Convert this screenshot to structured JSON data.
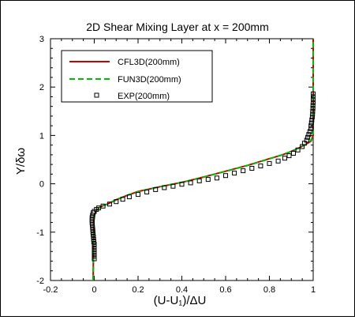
{
  "chart_data": {
    "type": "line",
    "title": "2D Shear Mixing Layer at x = 200mm",
    "xlabel": "(U-U₁)/ΔU",
    "ylabel": "Y/δω",
    "xlim": [
      -0.2,
      1.0
    ],
    "ylim": [
      -2,
      3
    ],
    "xticks": [
      "-0.2",
      "0",
      "0.2",
      "0.4",
      "0.6",
      "0.8",
      "1"
    ],
    "xtick_values": [
      -0.2,
      0,
      0.2,
      0.4,
      0.6,
      0.8,
      1.0
    ],
    "yticks": [
      "-2",
      "-1",
      "0",
      "1",
      "2",
      "3"
    ],
    "ytick_values": [
      -2,
      -1,
      0,
      1,
      2,
      3
    ],
    "legend_placement": "top-left",
    "series": [
      {
        "name": "CFL3D(200mm)",
        "style": "solid line",
        "color": "#cc0000",
        "points": [
          [
            -0.005,
            -2.0
          ],
          [
            -0.004,
            -1.5
          ],
          [
            -0.003,
            -1.0
          ],
          [
            -0.002,
            -0.8
          ],
          [
            0.0,
            -0.65
          ],
          [
            0.01,
            -0.55
          ],
          [
            0.03,
            -0.47
          ],
          [
            0.06,
            -0.42
          ],
          [
            0.1,
            -0.33
          ],
          [
            0.15,
            -0.24
          ],
          [
            0.2,
            -0.16
          ],
          [
            0.3,
            -0.06
          ],
          [
            0.4,
            0.03
          ],
          [
            0.5,
            0.14
          ],
          [
            0.6,
            0.26
          ],
          [
            0.7,
            0.38
          ],
          [
            0.8,
            0.52
          ],
          [
            0.86,
            0.6
          ],
          [
            0.9,
            0.67
          ],
          [
            0.93,
            0.73
          ],
          [
            0.96,
            0.8
          ],
          [
            0.99,
            0.88
          ],
          [
            1.0,
            1.0
          ],
          [
            1.0,
            1.5
          ],
          [
            1.0,
            2.0
          ],
          [
            1.0,
            3.0
          ]
        ]
      },
      {
        "name": "FUN3D(200mm)",
        "style": "dashed line",
        "color": "#00bb00",
        "points": [
          [
            -0.005,
            -2.0
          ],
          [
            -0.004,
            -1.5
          ],
          [
            -0.003,
            -1.0
          ],
          [
            -0.001,
            -0.78
          ],
          [
            0.002,
            -0.64
          ],
          [
            0.012,
            -0.54
          ],
          [
            0.035,
            -0.46
          ],
          [
            0.065,
            -0.41
          ],
          [
            0.105,
            -0.32
          ],
          [
            0.155,
            -0.23
          ],
          [
            0.21,
            -0.15
          ],
          [
            0.31,
            -0.05
          ],
          [
            0.41,
            0.04
          ],
          [
            0.51,
            0.15
          ],
          [
            0.61,
            0.27
          ],
          [
            0.71,
            0.39
          ],
          [
            0.81,
            0.53
          ],
          [
            0.865,
            0.61
          ],
          [
            0.905,
            0.68
          ],
          [
            0.935,
            0.74
          ],
          [
            0.965,
            0.81
          ],
          [
            0.99,
            0.9
          ],
          [
            1.0,
            1.0
          ],
          [
            1.0,
            1.5
          ],
          [
            1.0,
            2.0
          ],
          [
            1.0,
            3.0
          ]
        ]
      },
      {
        "name": "EXP(200mm)",
        "style": "open square markers",
        "color": "#000000",
        "points": [
          [
            0.0,
            -1.55
          ],
          [
            0.0,
            -1.5
          ],
          [
            0.0,
            -1.45
          ],
          [
            0.0,
            -1.4
          ],
          [
            0.0,
            -1.35
          ],
          [
            0.0,
            -1.3
          ],
          [
            0.0,
            -1.25
          ],
          [
            -0.002,
            -1.2
          ],
          [
            -0.003,
            -1.15
          ],
          [
            -0.004,
            -1.1
          ],
          [
            -0.005,
            -1.05
          ],
          [
            -0.006,
            -1.0
          ],
          [
            -0.007,
            -0.95
          ],
          [
            -0.008,
            -0.9
          ],
          [
            -0.009,
            -0.85
          ],
          [
            -0.01,
            -0.8
          ],
          [
            -0.01,
            -0.75
          ],
          [
            -0.01,
            -0.7
          ],
          [
            -0.008,
            -0.65
          ],
          [
            -0.005,
            -0.6
          ],
          [
            0.0,
            -0.57
          ],
          [
            0.01,
            -0.53
          ],
          [
            0.02,
            -0.5
          ],
          [
            0.04,
            -0.46
          ],
          [
            0.07,
            -0.42
          ],
          [
            0.1,
            -0.37
          ],
          [
            0.13,
            -0.32
          ],
          [
            0.16,
            -0.27
          ],
          [
            0.2,
            -0.22
          ],
          [
            0.24,
            -0.17
          ],
          [
            0.28,
            -0.12
          ],
          [
            0.32,
            -0.08
          ],
          [
            0.36,
            -0.05
          ],
          [
            0.4,
            -0.01
          ],
          [
            0.44,
            0.02
          ],
          [
            0.48,
            0.06
          ],
          [
            0.52,
            0.09
          ],
          [
            0.56,
            0.12
          ],
          [
            0.6,
            0.17
          ],
          [
            0.64,
            0.22
          ],
          [
            0.68,
            0.27
          ],
          [
            0.72,
            0.32
          ],
          [
            0.76,
            0.37
          ],
          [
            0.8,
            0.42
          ],
          [
            0.84,
            0.47
          ],
          [
            0.87,
            0.53
          ],
          [
            0.89,
            0.58
          ],
          [
            0.91,
            0.63
          ],
          [
            0.93,
            0.7
          ],
          [
            0.95,
            0.77
          ],
          [
            0.96,
            0.84
          ],
          [
            0.97,
            0.9
          ],
          [
            0.975,
            0.96
          ],
          [
            0.98,
            1.02
          ],
          [
            0.985,
            1.08
          ],
          [
            0.99,
            1.14
          ],
          [
            0.99,
            1.2
          ],
          [
            0.992,
            1.26
          ],
          [
            0.994,
            1.32
          ],
          [
            0.996,
            1.38
          ],
          [
            0.997,
            1.44
          ],
          [
            0.998,
            1.5
          ],
          [
            0.999,
            1.56
          ],
          [
            0.999,
            1.62
          ],
          [
            1.0,
            1.68
          ],
          [
            1.0,
            1.74
          ],
          [
            1.0,
            1.8
          ],
          [
            1.0,
            1.86
          ]
        ]
      }
    ]
  }
}
